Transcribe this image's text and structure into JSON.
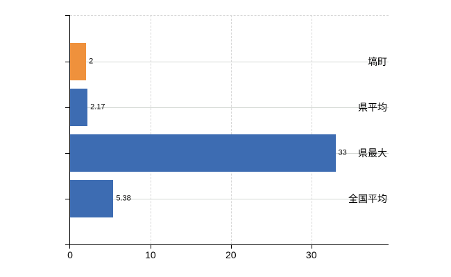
{
  "chart_data": {
    "type": "bar",
    "orientation": "horizontal",
    "categories": [
      "塙町",
      "県平均",
      "県最大",
      "全国平均"
    ],
    "values": [
      2,
      2.17,
      33,
      5.38
    ],
    "value_labels": [
      "2",
      "2.17",
      "33",
      "5.38"
    ],
    "bar_colors": [
      "#ef913c",
      "#3d6cb2",
      "#3d6cb2",
      "#3d6cb2"
    ],
    "x_ticks": [
      0,
      10,
      20,
      30
    ],
    "x_tick_labels": [
      "0",
      "10",
      "20",
      "30"
    ],
    "xlim": [
      0,
      39.6
    ],
    "grid": true,
    "legend": false,
    "colors": {
      "axis": "#000000",
      "gridline_solid": "#d4d8d4",
      "gridline_dashed": "#d6d6d6",
      "text": "#000000",
      "background": "#ffffff"
    }
  }
}
